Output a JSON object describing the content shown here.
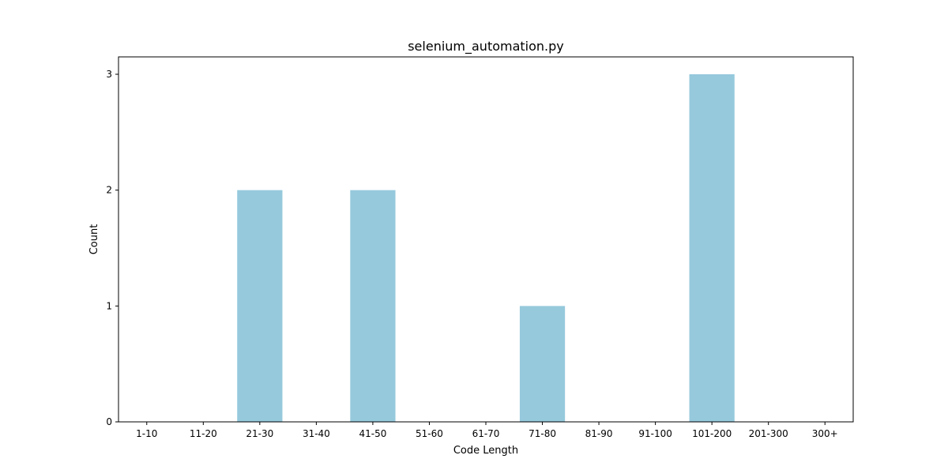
{
  "chart_data": {
    "type": "bar",
    "title": "selenium_automation.py",
    "xlabel": "Code Length",
    "ylabel": "Count",
    "categories": [
      "1-10",
      "11-20",
      "21-30",
      "31-40",
      "41-50",
      "51-60",
      "61-70",
      "71-80",
      "81-90",
      "91-100",
      "101-200",
      "201-300",
      "300+"
    ],
    "values": [
      0,
      0,
      2,
      0,
      2,
      0,
      0,
      1,
      0,
      0,
      3,
      0,
      0
    ],
    "ylim": [
      0,
      3.15
    ],
    "yticks": [
      "0",
      "1",
      "2",
      "3"
    ],
    "grid": false,
    "bar_color": "#96c9dc"
  }
}
